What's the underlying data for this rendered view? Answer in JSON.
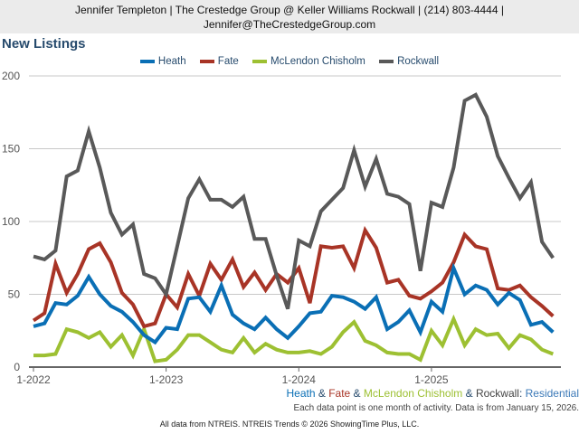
{
  "header": {
    "line1": "Jennifer Templeton | The Crestedge Group @ Keller Williams Rockwall | (214) 803-4444 |",
    "line2": "Jennifer@TheCrestedgeGroup.com"
  },
  "subtitle": {
    "heath": "Heath",
    "amp1": " & ",
    "fate": "Fate",
    "amp2": " & ",
    "mclendon": "McLendon Chisholm",
    "amp3": " & ",
    "rockwall": "Rockwall",
    "colon": ": ",
    "residential": "Residential"
  },
  "note": "Each data point is one month of activity. Data is from January 15, 2026.",
  "footer": "All data from NTREIS. NTREIS Trends © 2026 ShowingTime Plus, LLC.",
  "colors": {
    "Heath": "#0a6fb5",
    "Fate": "#a83426",
    "McLendon Chisholm": "#9dc032",
    "Rockwall": "#595959",
    "title": "#274b6d"
  },
  "chart_data": {
    "type": "line",
    "title": "New Listings",
    "xlabel": "",
    "ylabel": "",
    "ylim": [
      0,
      200
    ],
    "yticks": [
      "0",
      "50",
      "100",
      "150",
      "200"
    ],
    "ytick_values": [
      0,
      50,
      100,
      150,
      200
    ],
    "xticks": [
      "1-2022",
      "1-2023",
      "1-2024",
      "1-2025"
    ],
    "xtick_index": [
      0,
      12,
      24,
      36
    ],
    "grid": true,
    "legend": "top-center",
    "x": [
      "1-2022",
      "2-2022",
      "3-2022",
      "4-2022",
      "5-2022",
      "6-2022",
      "7-2022",
      "8-2022",
      "9-2022",
      "10-2022",
      "11-2022",
      "12-2022",
      "1-2023",
      "2-2023",
      "3-2023",
      "4-2023",
      "5-2023",
      "6-2023",
      "7-2023",
      "8-2023",
      "9-2023",
      "10-2023",
      "11-2023",
      "12-2023",
      "1-2024",
      "2-2024",
      "3-2024",
      "4-2024",
      "5-2024",
      "6-2024",
      "7-2024",
      "8-2024",
      "9-2024",
      "10-2024",
      "11-2024",
      "12-2024",
      "1-2025",
      "2-2025",
      "3-2025",
      "4-2025",
      "5-2025",
      "6-2025",
      "7-2025",
      "8-2025",
      "9-2025",
      "10-2025",
      "11-2025",
      "12-2025"
    ],
    "series": [
      {
        "name": "Heath",
        "values": [
          28,
          30,
          44,
          43,
          49,
          62,
          50,
          42,
          38,
          31,
          22,
          17,
          27,
          26,
          47,
          48,
          38,
          56,
          36,
          30,
          26,
          34,
          26,
          20,
          28,
          37,
          38,
          49,
          48,
          45,
          40,
          48,
          26,
          31,
          39,
          24,
          45,
          38,
          68,
          50,
          56,
          53,
          43,
          51,
          46,
          29,
          31,
          24
        ]
      },
      {
        "name": "Fate",
        "values": [
          32,
          37,
          71,
          51,
          64,
          81,
          85,
          72,
          51,
          43,
          28,
          30,
          50,
          41,
          64,
          49,
          71,
          60,
          74,
          55,
          65,
          53,
          64,
          58,
          68,
          44,
          83,
          82,
          83,
          68,
          94,
          82,
          58,
          60,
          49,
          47,
          52,
          58,
          72,
          91,
          83,
          81,
          54,
          53,
          56,
          48,
          42,
          35
        ]
      },
      {
        "name": "McLendon Chisholm",
        "values": [
          8,
          8,
          9,
          26,
          24,
          20,
          24,
          14,
          22,
          8,
          26,
          4,
          5,
          12,
          22,
          22,
          17,
          12,
          10,
          20,
          10,
          16,
          12,
          10,
          10,
          11,
          9,
          14,
          24,
          31,
          18,
          15,
          10,
          9,
          9,
          5,
          25,
          15,
          33,
          15,
          26,
          22,
          23,
          13,
          22,
          19,
          12,
          9
        ]
      },
      {
        "name": "Rockwall",
        "values": [
          76,
          74,
          80,
          131,
          135,
          162,
          137,
          106,
          91,
          98,
          64,
          61,
          50,
          83,
          116,
          129,
          115,
          115,
          110,
          117,
          88,
          88,
          63,
          40,
          87,
          83,
          107,
          115,
          123,
          149,
          124,
          143,
          119,
          117,
          112,
          66,
          113,
          110,
          137,
          183,
          187,
          172,
          145,
          130,
          116,
          127,
          86,
          75
        ]
      }
    ]
  }
}
